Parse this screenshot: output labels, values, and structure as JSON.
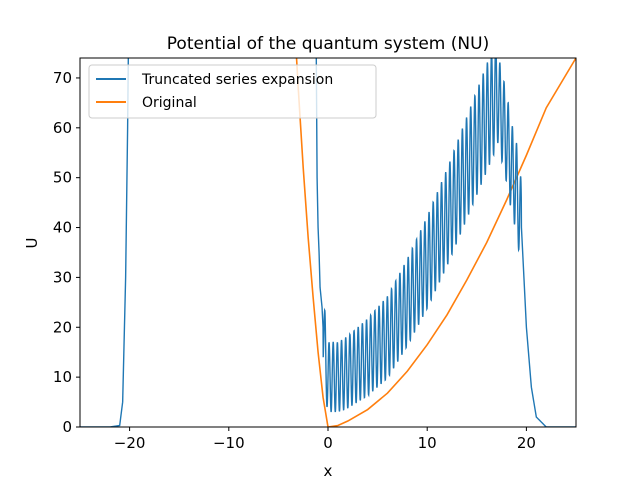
{
  "chart_data": {
    "type": "line",
    "title": "Potential of the quantum system (NU)",
    "xlabel": "x",
    "ylabel": "U",
    "xlim": [
      -25,
      25
    ],
    "ylim": [
      0,
      74
    ],
    "x_ticks": [
      -20,
      -10,
      0,
      10,
      20
    ],
    "x_tick_labels": [
      "−20",
      "−10",
      "0",
      "10",
      "20"
    ],
    "y_ticks": [
      0,
      10,
      20,
      30,
      40,
      50,
      60,
      70
    ],
    "y_tick_labels": [
      "0",
      "10",
      "20",
      "30",
      "40",
      "50",
      "60",
      "70"
    ],
    "grid": false,
    "legend_position": "upper-left",
    "series": [
      {
        "name": "Truncated series expansion",
        "color": "#1f77b4",
        "description": "Oscillating approximation; approx envelope points",
        "x": [
          -25,
          -22,
          -21,
          -20.7,
          -20.4,
          -20.2,
          -20.1,
          -1.2,
          -1.1,
          -1.0,
          -0.9,
          -0.8,
          -0.6,
          -0.5,
          -0.4,
          -0.3,
          -0.2,
          0,
          1,
          2,
          4,
          6,
          8,
          10,
          12,
          14,
          16,
          17,
          18,
          18.5,
          19,
          19.5,
          20,
          20.5,
          21,
          22,
          25
        ],
        "values": [
          0,
          0,
          0.3,
          5,
          30,
          60,
          80,
          80,
          50,
          40,
          35,
          28,
          24,
          20,
          18,
          16,
          12,
          10,
          10,
          11,
          14,
          18,
          25,
          33,
          42,
          52,
          62,
          67,
          58,
          52,
          48,
          40,
          20,
          8,
          2,
          0,
          0
        ]
      },
      {
        "name": "Original",
        "color": "#ff7f0e",
        "description": "U(x) = x^2/6.25 + 0.2x, approximate original potential",
        "x": [
          -3.2,
          -3,
          -2.5,
          -2,
          -1.5,
          -1,
          -0.5,
          0,
          1,
          2,
          4,
          6,
          8,
          10,
          12,
          14,
          16,
          18,
          20,
          22,
          25
        ],
        "values": [
          75,
          68,
          52,
          38,
          26,
          15,
          6,
          0,
          0.3,
          1.2,
          3.5,
          6.8,
          11.2,
          16.5,
          22.5,
          29.5,
          37.0,
          45.5,
          54.5,
          64.0,
          74.0
        ]
      }
    ]
  }
}
